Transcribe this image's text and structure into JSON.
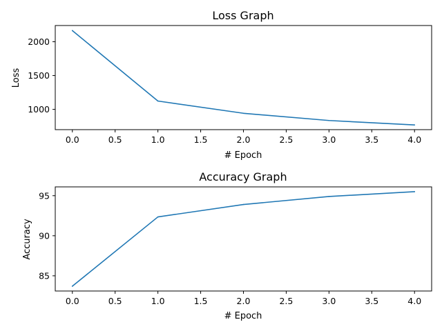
{
  "chart_data": [
    {
      "type": "line",
      "title": "Loss Graph",
      "xlabel": "# Epoch",
      "ylabel": "Loss",
      "x": [
        0,
        1,
        2,
        3,
        4
      ],
      "xlim": [
        -0.2,
        4.2
      ],
      "ylim": [
        700,
        2240
      ],
      "xticks": [
        0.0,
        0.5,
        1.0,
        1.5,
        2.0,
        2.5,
        3.0,
        3.5,
        4.0
      ],
      "xtick_labels": [
        "0.0",
        "0.5",
        "1.0",
        "1.5",
        "2.0",
        "2.5",
        "3.0",
        "3.5",
        "4.0"
      ],
      "yticks": [
        1000,
        1500,
        2000
      ],
      "ytick_labels": [
        "1000",
        "1500",
        "2000"
      ],
      "grid": false,
      "series": [
        {
          "values": [
            2165,
            1123,
            942,
            835,
            770
          ],
          "color": "#1f77b4"
        }
      ]
    },
    {
      "type": "line",
      "title": "Accuracy Graph",
      "xlabel": "# Epoch",
      "ylabel": "Accuracy",
      "x": [
        0,
        1,
        2,
        3,
        4
      ],
      "xlim": [
        -0.2,
        4.2
      ],
      "ylim": [
        83.1,
        96.1
      ],
      "xticks": [
        0.0,
        0.5,
        1.0,
        1.5,
        2.0,
        2.5,
        3.0,
        3.5,
        4.0
      ],
      "xtick_labels": [
        "0.0",
        "0.5",
        "1.0",
        "1.5",
        "2.0",
        "2.5",
        "3.0",
        "3.5",
        "4.0"
      ],
      "yticks": [
        85,
        90,
        95
      ],
      "ytick_labels": [
        "85",
        "90",
        "95"
      ],
      "grid": false,
      "series": [
        {
          "values": [
            83.7,
            92.35,
            93.9,
            94.9,
            95.5
          ],
          "color": "#1f77b4"
        }
      ]
    }
  ]
}
